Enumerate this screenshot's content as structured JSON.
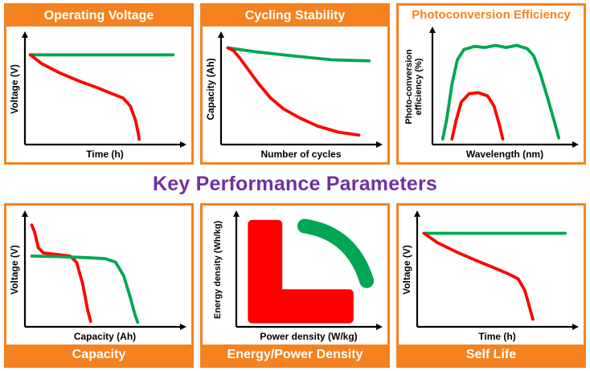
{
  "figure": {
    "title": "Key Performance Parameters"
  },
  "colors": {
    "orange": "#F58220",
    "purple": "#7030A0",
    "red": "#FF0000",
    "green": "#00A651",
    "axis": "#000000"
  },
  "chart_data": [
    {
      "key": "operating-voltage",
      "type": "line",
      "title": "Operating Voltage",
      "title_style": "banner-top",
      "xlabel": "Time (h)",
      "ylabel": "Voltage (V)",
      "axes": "schematic arrows, no tick values",
      "series": [
        {
          "name": "green-stable-voltage",
          "color": "#00A651",
          "points": [
            [
              0.02,
              0.87
            ],
            [
              0.99,
              0.87
            ]
          ]
        },
        {
          "name": "red-fading-voltage",
          "color": "#FF0000",
          "points": [
            [
              0.02,
              0.87
            ],
            [
              0.1,
              0.78
            ],
            [
              0.22,
              0.69
            ],
            [
              0.35,
              0.61
            ],
            [
              0.48,
              0.54
            ],
            [
              0.58,
              0.48
            ],
            [
              0.65,
              0.44
            ],
            [
              0.7,
              0.36
            ],
            [
              0.735,
              0.22
            ],
            [
              0.755,
              0.08
            ],
            [
              0.76,
              0.03
            ]
          ]
        }
      ]
    },
    {
      "key": "cycling-stability",
      "type": "line",
      "title": "Cycling Stability",
      "title_style": "banner-top",
      "xlabel": "Number of cycles",
      "ylabel": "Capacity (Ah)",
      "axes": "schematic arrows, no tick values",
      "series": [
        {
          "name": "green-stable-capacity",
          "color": "#00A651",
          "points": [
            [
              0.03,
              0.94
            ],
            [
              0.12,
              0.92
            ],
            [
              0.22,
              0.9
            ],
            [
              0.34,
              0.88
            ],
            [
              0.47,
              0.86
            ],
            [
              0.6,
              0.84
            ],
            [
              0.74,
              0.82
            ],
            [
              0.99,
              0.81
            ]
          ]
        },
        {
          "name": "red-fading-capacity",
          "color": "#FF0000",
          "points": [
            [
              0.03,
              0.94
            ],
            [
              0.07,
              0.91
            ],
            [
              0.11,
              0.84
            ],
            [
              0.17,
              0.72
            ],
            [
              0.24,
              0.58
            ],
            [
              0.32,
              0.44
            ],
            [
              0.41,
              0.33
            ],
            [
              0.52,
              0.24
            ],
            [
              0.64,
              0.16
            ],
            [
              0.78,
              0.1
            ],
            [
              0.92,
              0.07
            ]
          ]
        }
      ]
    },
    {
      "key": "photoconversion-efficiency",
      "type": "line",
      "title": "Photoconversion Efficiency",
      "title_style": "orange-text-top",
      "xlabel": "Wavelength (nm)",
      "ylabel": "Photo-conversion efficiency (%)",
      "axes": "schematic arrows, no tick values",
      "series": [
        {
          "name": "green-broadband-response",
          "color": "#00A651",
          "points": [
            [
              0.06,
              0.03
            ],
            [
              0.09,
              0.22
            ],
            [
              0.13,
              0.55
            ],
            [
              0.17,
              0.78
            ],
            [
              0.22,
              0.88
            ],
            [
              0.3,
              0.91
            ],
            [
              0.38,
              0.9
            ],
            [
              0.46,
              0.92
            ],
            [
              0.54,
              0.9
            ],
            [
              0.62,
              0.92
            ],
            [
              0.7,
              0.89
            ],
            [
              0.75,
              0.82
            ],
            [
              0.8,
              0.65
            ],
            [
              0.86,
              0.4
            ],
            [
              0.91,
              0.18
            ],
            [
              0.94,
              0.04
            ]
          ]
        },
        {
          "name": "red-narrowband-response",
          "color": "#FF0000",
          "points": [
            [
              0.13,
              0.03
            ],
            [
              0.16,
              0.2
            ],
            [
              0.2,
              0.38
            ],
            [
              0.26,
              0.46
            ],
            [
              0.33,
              0.47
            ],
            [
              0.4,
              0.44
            ],
            [
              0.45,
              0.34
            ],
            [
              0.49,
              0.16
            ],
            [
              0.515,
              0.03
            ]
          ]
        }
      ]
    },
    {
      "key": "capacity",
      "type": "line",
      "title": "Capacity",
      "title_style": "banner-bottom",
      "xlabel": "Capacity (Ah)",
      "ylabel": "Voltage (V)",
      "axes": "schematic arrows, no tick values",
      "series": [
        {
          "name": "red-low-capacity-discharge",
          "color": "#FF0000",
          "points": [
            [
              0.03,
              0.96
            ],
            [
              0.05,
              0.89
            ],
            [
              0.075,
              0.74
            ],
            [
              0.11,
              0.69
            ],
            [
              0.2,
              0.675
            ],
            [
              0.29,
              0.66
            ],
            [
              0.335,
              0.6
            ],
            [
              0.375,
              0.4
            ],
            [
              0.41,
              0.14
            ],
            [
              0.43,
              0.03
            ]
          ]
        },
        {
          "name": "green-high-capacity-discharge",
          "color": "#00A651",
          "points": [
            [
              0.03,
              0.66
            ],
            [
              0.2,
              0.655
            ],
            [
              0.4,
              0.645
            ],
            [
              0.53,
              0.635
            ],
            [
              0.6,
              0.6
            ],
            [
              0.655,
              0.47
            ],
            [
              0.7,
              0.26
            ],
            [
              0.735,
              0.08
            ],
            [
              0.75,
              0.02
            ]
          ]
        }
      ]
    },
    {
      "key": "energy-power-density",
      "type": "area",
      "title": "Energy/Power Density",
      "title_style": "banner-bottom",
      "xlabel": "Power density (W/kg)",
      "ylabel": "Energy density (Wh/kg)",
      "axes": "schematic arrows, no tick values (Ragone-style regions)",
      "shapes": [
        {
          "name": "red-L-shaped-region",
          "color": "#FF0000",
          "polygon": [
            [
              0.1,
              0.97
            ],
            [
              0.3,
              0.97
            ],
            [
              0.3,
              0.3
            ],
            [
              0.84,
              0.3
            ],
            [
              0.84,
              0.05
            ],
            [
              0.1,
              0.05
            ]
          ]
        },
        {
          "name": "green-curved-band-region",
          "color": "#00A651",
          "arc": {
            "from": [
              0.5,
              0.95
            ],
            "via": [
              0.86,
              0.88
            ],
            "to": [
              0.97,
              0.42
            ],
            "width": 18
          }
        }
      ]
    },
    {
      "key": "self-life",
      "type": "line",
      "title": "Self Life",
      "title_style": "banner-bottom",
      "xlabel": "Time (h)",
      "ylabel": "Voltage (V)",
      "axes": "schematic arrows, no tick values",
      "series": [
        {
          "name": "green-stable-voltage",
          "color": "#00A651",
          "points": [
            [
              0.03,
              0.88
            ],
            [
              0.99,
              0.88
            ]
          ]
        },
        {
          "name": "red-self-discharging-voltage",
          "color": "#FF0000",
          "points": [
            [
              0.03,
              0.88
            ],
            [
              0.12,
              0.79
            ],
            [
              0.25,
              0.7
            ],
            [
              0.38,
              0.62
            ],
            [
              0.5,
              0.55
            ],
            [
              0.6,
              0.49
            ],
            [
              0.67,
              0.44
            ],
            [
              0.715,
              0.33
            ],
            [
              0.745,
              0.18
            ],
            [
              0.77,
              0.05
            ]
          ]
        }
      ]
    }
  ]
}
